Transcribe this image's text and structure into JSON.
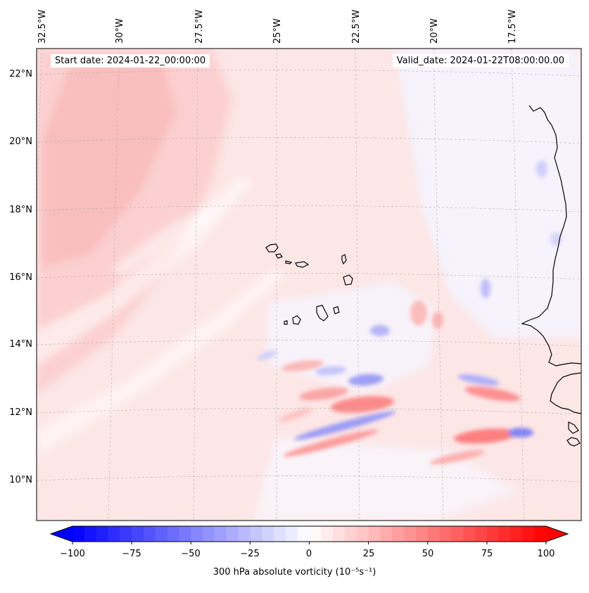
{
  "map": {
    "title_left": "Start date: 2024-01-22_00:00:00",
    "title_right": "Valid_date: 2024-01-22T08:00:00.00",
    "lon_ticks": [
      {
        "label": "32.5°W",
        "value": -32.5
      },
      {
        "label": "30°W",
        "value": -30
      },
      {
        "label": "27.5°W",
        "value": -27.5
      },
      {
        "label": "25°W",
        "value": -25
      },
      {
        "label": "22.5°W",
        "value": -22.5
      },
      {
        "label": "20°W",
        "value": -20
      },
      {
        "label": "17.5°W",
        "value": -17.5
      }
    ],
    "lat_ticks": [
      {
        "label": "22°N",
        "value": 22
      },
      {
        "label": "20°N",
        "value": 20
      },
      {
        "label": "18°N",
        "value": 18
      },
      {
        "label": "16°N",
        "value": 16
      },
      {
        "label": "14°N",
        "value": 14
      },
      {
        "label": "12°N",
        "value": 12
      },
      {
        "label": "10°N",
        "value": 10
      }
    ]
  },
  "colorbar": {
    "min": -100,
    "max": 100,
    "ticks": [
      "−100",
      "−75",
      "−50",
      "−25",
      "0",
      "25",
      "50",
      "75",
      "100"
    ],
    "label": "300 hPa absolute vorticity (10⁻⁵s⁻¹)",
    "color_low": "#0000ff",
    "color_mid": "#ffffff",
    "color_high": "#ff0000"
  },
  "colors": {
    "coast": "#000000",
    "grid": "#b0b0b0"
  }
}
